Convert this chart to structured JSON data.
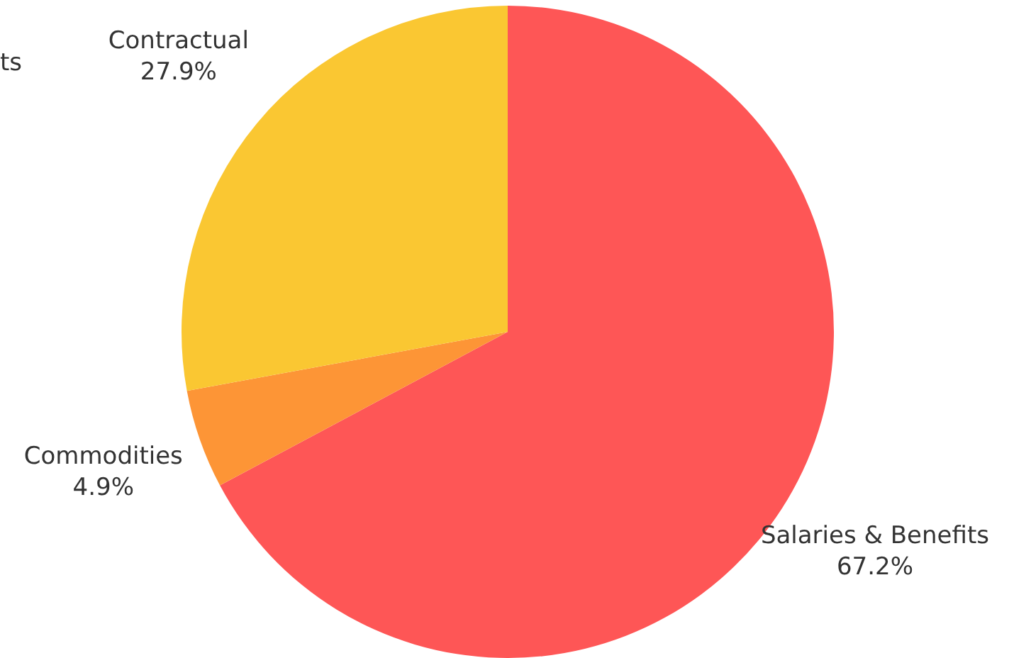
{
  "chart_data": {
    "type": "pie",
    "categories": [
      "Salaries & Benefits",
      "Commodities",
      "Contractual"
    ],
    "values": [
      67.2,
      4.9,
      27.9
    ],
    "colors": [
      "#fe5656",
      "#fd9536",
      "#fac732"
    ],
    "value_labels": [
      "67.2%",
      "4.9%",
      "27.9%"
    ],
    "annotations": [
      "ts"
    ],
    "legend": false
  }
}
